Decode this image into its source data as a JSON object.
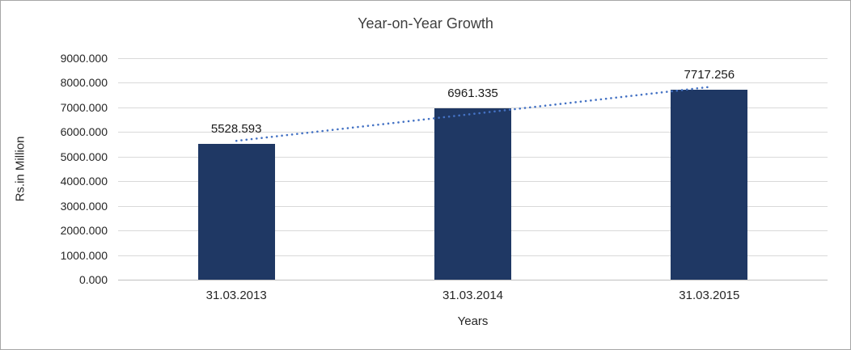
{
  "chart_data": {
    "type": "bar",
    "title": "Year-on-Year Growth",
    "categories": [
      "31.03.2013",
      "31.03.2014",
      "31.03.2015"
    ],
    "values": [
      5528.593,
      6961.335,
      7717.256
    ],
    "value_labels": [
      "5528.593",
      "6961.335",
      "7717.256"
    ],
    "xlabel": "Years",
    "ylabel": "Rs.in Million",
    "ylim": [
      0,
      9000
    ],
    "ytick_step": 1000,
    "ytick_labels": [
      "0.000",
      "1000.000",
      "2000.000",
      "3000.000",
      "4000.000",
      "5000.000",
      "6000.000",
      "7000.000",
      "8000.000",
      "9000.000"
    ],
    "grid": true,
    "legend": false,
    "bar_color": "#1F3864",
    "trendline": {
      "type": "linear",
      "style": "dotted",
      "color": "#4472C4"
    }
  }
}
